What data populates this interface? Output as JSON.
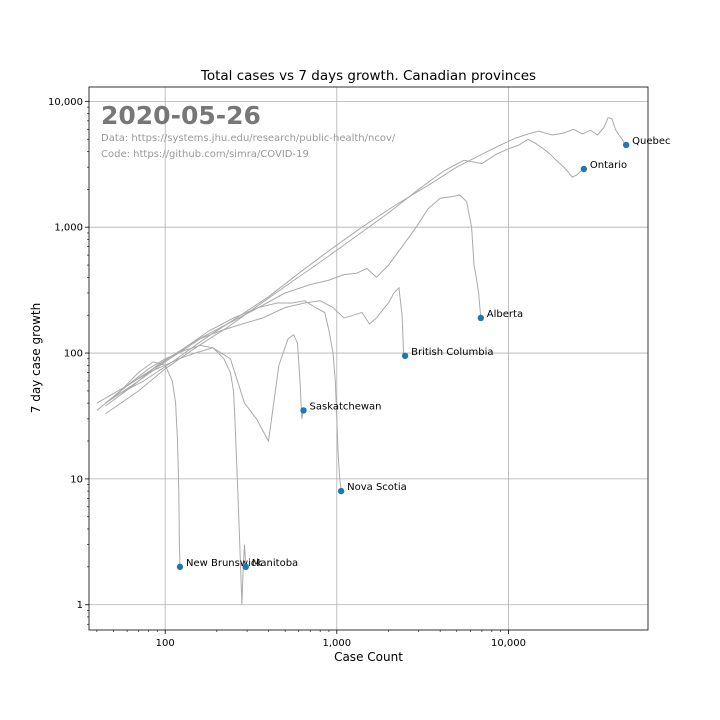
{
  "chart_data": {
    "type": "line",
    "title": "Total cases vs 7 days growth. Canadian provinces",
    "xlabel": "Case Count",
    "ylabel": "7 day case growth",
    "x_scale": "log",
    "y_scale": "log",
    "xlim": [
      36,
      65000
    ],
    "ylim": [
      0.63,
      13000
    ],
    "x_ticks": [
      {
        "value": 100,
        "label": "100"
      },
      {
        "value": 1000,
        "label": "1,000"
      },
      {
        "value": 10000,
        "label": "10,000"
      }
    ],
    "y_ticks": [
      {
        "value": 1,
        "label": "1"
      },
      {
        "value": 10,
        "label": "10"
      },
      {
        "value": 100,
        "label": "100"
      },
      {
        "value": 1000,
        "label": "1,000"
      },
      {
        "value": 10000,
        "label": "10,000"
      }
    ],
    "grid": true,
    "annotations": {
      "date": "2020-05-26",
      "data_source": "Data: https://systems.jhu.edu/research/public-health/ncov/",
      "code_source": "Code: https://github.com/simra/COVID-19"
    },
    "colors": {
      "line": "#aaaaaa",
      "point": "#1f77b4",
      "annotation": "#777777",
      "source_text": "#999999"
    },
    "series": [
      {
        "name": "Quebec",
        "x": [
          50,
          75,
          110,
          170,
          260,
          400,
          600,
          900,
          1400,
          2200,
          3500,
          5000,
          7000,
          9000,
          11000,
          13000,
          15000,
          18000,
          21000,
          24000,
          27000,
          30000,
          33000,
          36000,
          38000,
          40000,
          42000,
          44000,
          46000,
          47500,
          48500
        ],
        "y": [
          45,
          60,
          85,
          130,
          190,
          280,
          430,
          650,
          1000,
          1500,
          2200,
          3000,
          3800,
          4500,
          5100,
          5500,
          5800,
          5400,
          5600,
          6000,
          5500,
          5900,
          5400,
          6200,
          7400,
          7300,
          6000,
          5400,
          5000,
          4600,
          4500
        ]
      },
      {
        "name": "Ontario",
        "x": [
          45,
          70,
          100,
          150,
          230,
          350,
          550,
          850,
          1300,
          2000,
          3000,
          4200,
          5500,
          7000,
          8500,
          10000,
          11500,
          13000,
          14500,
          16000,
          17500,
          19000,
          20500,
          22000,
          23500,
          25000,
          26500,
          27500
        ],
        "y": [
          33,
          50,
          75,
          110,
          160,
          240,
          370,
          560,
          850,
          1300,
          2000,
          2800,
          3400,
          3200,
          3800,
          4200,
          4500,
          5000,
          4600,
          4200,
          3800,
          3400,
          3100,
          2800,
          2500,
          2600,
          2800,
          2900
        ]
      },
      {
        "name": "Alberta",
        "x": [
          45,
          70,
          100,
          150,
          230,
          350,
          500,
          700,
          900,
          1100,
          1300,
          1500,
          1700,
          2000,
          2400,
          2900,
          3400,
          4000,
          4700,
          5200,
          5700,
          6100,
          6300,
          6500,
          6700,
          6900
        ],
        "y": [
          40,
          60,
          85,
          125,
          170,
          230,
          300,
          350,
          380,
          420,
          430,
          470,
          400,
          500,
          700,
          1000,
          1400,
          1700,
          1750,
          1800,
          1600,
          1000,
          500,
          400,
          300,
          190
        ]
      },
      {
        "name": "British Columbia",
        "x": [
          40,
          60,
          85,
          120,
          160,
          210,
          280,
          370,
          500,
          650,
          800,
          950,
          1100,
          1250,
          1400,
          1550,
          1700,
          1850,
          2000,
          2150,
          2300,
          2400,
          2450,
          2500
        ],
        "y": [
          40,
          55,
          75,
          100,
          130,
          150,
          170,
          190,
          230,
          250,
          260,
          230,
          190,
          200,
          210,
          170,
          190,
          220,
          250,
          300,
          330,
          200,
          100,
          95
        ]
      },
      {
        "name": "Saskatchewan",
        "x": [
          45,
          60,
          80,
          100,
          120,
          150,
          190,
          240,
          290,
          340,
          400,
          460,
          520,
          560,
          590,
          610,
          625,
          640
        ],
        "y": [
          40,
          55,
          70,
          80,
          90,
          100,
          110,
          90,
          40,
          30,
          20,
          80,
          130,
          140,
          120,
          60,
          30,
          35
        ]
      },
      {
        "name": "Nova Scotia",
        "x": [
          45,
          65,
          90,
          130,
          180,
          250,
          350,
          450,
          550,
          650,
          750,
          850,
          900,
          950,
          980,
          1000,
          1020,
          1040,
          1060
        ],
        "y": [
          38,
          55,
          80,
          110,
          150,
          190,
          230,
          250,
          250,
          260,
          230,
          210,
          150,
          100,
          60,
          30,
          15,
          10,
          8
        ]
      },
      {
        "name": "Manitoba",
        "x": [
          45,
          60,
          80,
          100,
          130,
          160,
          190,
          220,
          240,
          250,
          255,
          260,
          265,
          270,
          275,
          280,
          285,
          290,
          295
        ],
        "y": [
          40,
          55,
          75,
          90,
          105,
          115,
          110,
          90,
          70,
          50,
          30,
          15,
          8,
          4,
          2,
          1,
          2,
          3,
          2
        ]
      },
      {
        "name": "New Brunswick",
        "x": [
          40,
          55,
          70,
          85,
          100,
          110,
          115,
          118,
          120,
          121,
          122
        ],
        "y": [
          35,
          50,
          70,
          85,
          80,
          60,
          40,
          20,
          8,
          3,
          2
        ]
      }
    ],
    "end_points": [
      {
        "name": "Quebec",
        "x": 48500,
        "y": 4500
      },
      {
        "name": "Ontario",
        "x": 27500,
        "y": 2900
      },
      {
        "name": "Alberta",
        "x": 6900,
        "y": 190
      },
      {
        "name": "British Columbia",
        "x": 2500,
        "y": 95
      },
      {
        "name": "Saskatchewan",
        "x": 640,
        "y": 35
      },
      {
        "name": "Nova Scotia",
        "x": 1060,
        "y": 8
      },
      {
        "name": "New Brunswick",
        "x": 122,
        "y": 2
      },
      {
        "name": "Manitoba",
        "x": 295,
        "y": 2
      }
    ]
  }
}
